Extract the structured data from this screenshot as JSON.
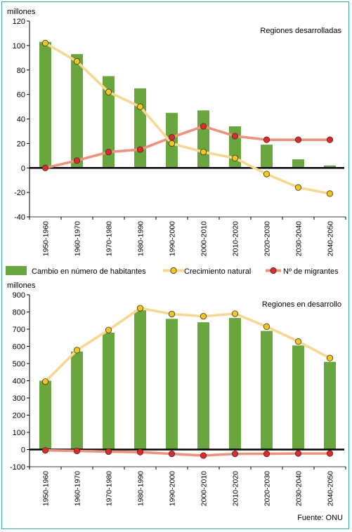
{
  "colors": {
    "bar": "#6aa63e",
    "natural_line": "#f8d88e",
    "natural_dot": "#f5c518",
    "migrants_line": "#f2917b",
    "migrants_dot": "#e8262a",
    "frame": "#39a8b0"
  },
  "legend": {
    "bars": "Cambio en número de habitantes",
    "natural": "Crecimiento natural",
    "migrants": "Nº de migrantes"
  },
  "source": "Fuente: ONU",
  "chart_data": [
    {
      "type": "bar",
      "title": "Regiones desarrolladas",
      "ylabel": "millones",
      "ylim": [
        -40,
        120
      ],
      "yticks": [
        -40,
        -20,
        0,
        20,
        40,
        60,
        80,
        100,
        120
      ],
      "categories": [
        "1950-1960",
        "1960-1970",
        "1970-1980",
        "1980-1990",
        "1990-2000",
        "2000-2010",
        "2010-2020",
        "2020-2030",
        "2030-2040",
        "2040-2050"
      ],
      "series": [
        {
          "name": "Cambio en número de habitantes",
          "kind": "bar",
          "values": [
            103,
            93,
            75,
            65,
            45,
            47,
            34,
            19,
            7,
            2
          ]
        },
        {
          "name": "Crecimiento natural",
          "kind": "line",
          "values": [
            102,
            87,
            62,
            50,
            20,
            13,
            8,
            -5,
            -16,
            -21
          ]
        },
        {
          "name": "Nº de migrantes",
          "kind": "line",
          "values": [
            0,
            6,
            13,
            15,
            25,
            34,
            26,
            23,
            23,
            23
          ]
        }
      ],
      "grid": false
    },
    {
      "type": "bar",
      "title": "Regiones en desarrollo",
      "ylabel": "millones",
      "ylim": [
        -100,
        900
      ],
      "yticks": [
        -100,
        0,
        100,
        200,
        300,
        400,
        500,
        600,
        700,
        800,
        900
      ],
      "categories": [
        "1950-1960",
        "1960-1970",
        "1970-1980",
        "1980-1990",
        "1990-2000",
        "2000-2010",
        "2010-2020",
        "2020-2030",
        "2030-2040",
        "2040-2050"
      ],
      "series": [
        {
          "name": "Cambio en número de habitantes",
          "kind": "bar",
          "values": [
            400,
            570,
            680,
            810,
            760,
            740,
            765,
            690,
            605,
            510
          ]
        },
        {
          "name": "Crecimiento natural",
          "kind": "line",
          "values": [
            395,
            578,
            695,
            822,
            788,
            775,
            790,
            715,
            628,
            532
          ]
        },
        {
          "name": "Nº de migrantes",
          "kind": "line",
          "values": [
            -5,
            -8,
            -12,
            -15,
            -25,
            -35,
            -25,
            -25,
            -23,
            -23
          ]
        }
      ],
      "grid": false
    }
  ]
}
